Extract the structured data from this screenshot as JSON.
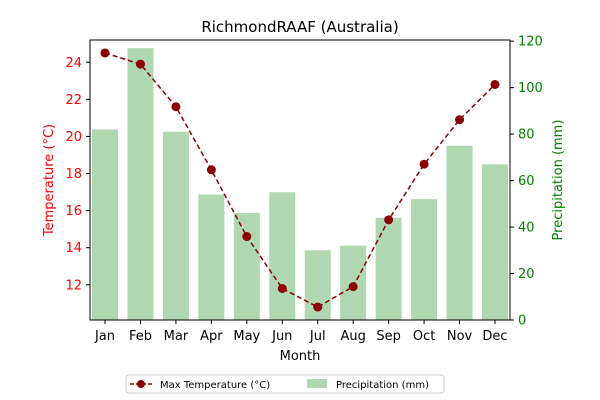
{
  "chart_data": {
    "type": "bar",
    "title": "RichmondRAAF (Australia)",
    "xlabel": "Month",
    "ylabel_left": "Temperature (°C)",
    "ylabel_right": "Precipitation (mm)",
    "categories": [
      "Jan",
      "Feb",
      "Mar",
      "Apr",
      "May",
      "Jun",
      "Jul",
      "Aug",
      "Sep",
      "Oct",
      "Nov",
      "Dec"
    ],
    "series": [
      {
        "name": "Max Temperature (°C)",
        "kind": "line",
        "axis": "left",
        "color": "#8b0000",
        "values": [
          24.5,
          23.9,
          21.6,
          18.2,
          14.6,
          11.8,
          10.8,
          11.9,
          15.5,
          18.5,
          20.9,
          22.8
        ]
      },
      {
        "name": "Precipitation (mm)",
        "kind": "bar",
        "axis": "right",
        "color": "#b0d8b0",
        "values": [
          82,
          117,
          81,
          54,
          46,
          55,
          30,
          32,
          44,
          52,
          75,
          67
        ]
      }
    ],
    "ylim_left": [
      10.1,
      25.2
    ],
    "yticks_left": [
      12,
      14,
      16,
      18,
      20,
      22,
      24
    ],
    "ylim_right": [
      0,
      120.5
    ],
    "yticks_right": [
      0,
      20,
      40,
      60,
      80,
      100,
      120
    ],
    "left_axis_color": "#ff0000",
    "right_axis_color": "#008000",
    "grid": false,
    "legend_position": "bottom-center"
  }
}
